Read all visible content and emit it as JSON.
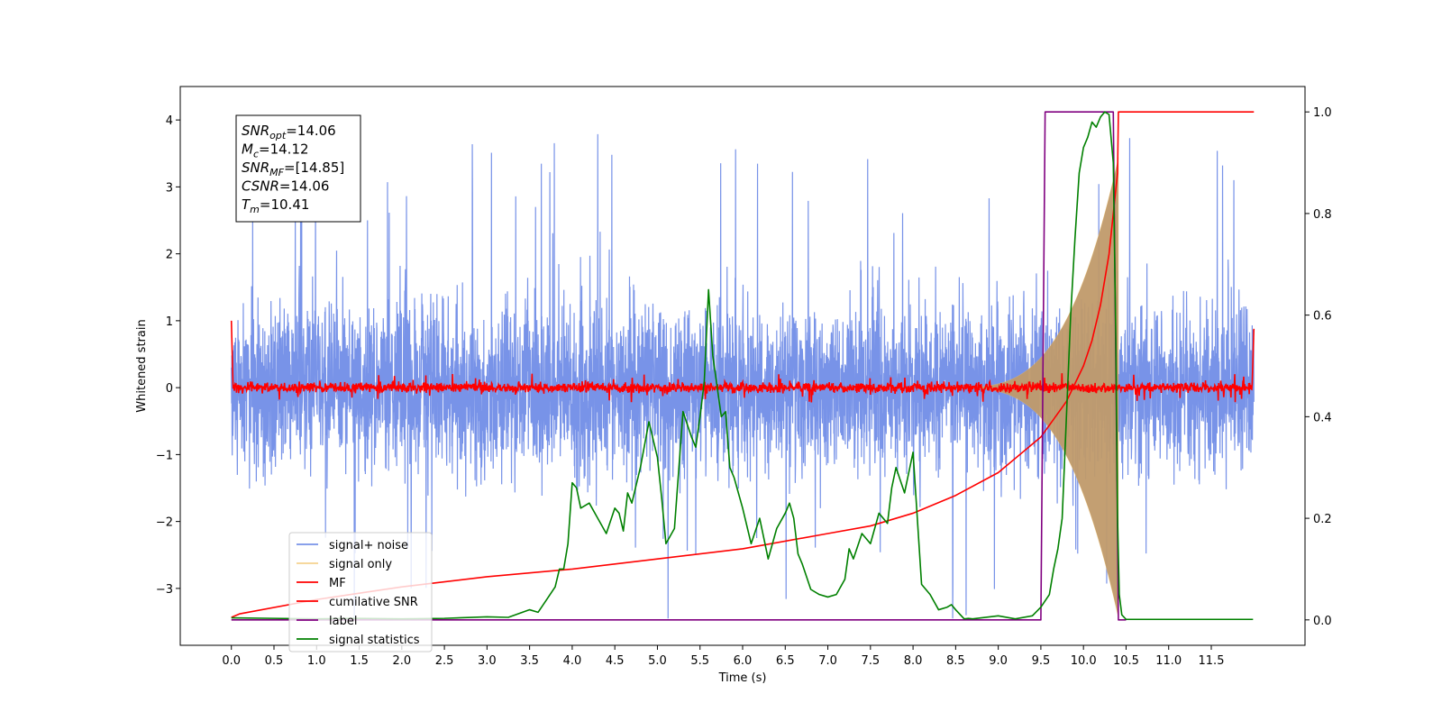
{
  "chart_data": {
    "type": "line",
    "title": "",
    "xlabel": "Time (s)",
    "ylabel": "Whitened strain",
    "y2label": "",
    "xlim": [
      -0.6,
      12.6
    ],
    "ylim": [
      -3.85,
      4.5
    ],
    "y2lim": [
      -0.05,
      1.05
    ],
    "xticks": [
      0.0,
      0.5,
      1.0,
      1.5,
      2.0,
      2.5,
      3.0,
      3.5,
      4.0,
      4.5,
      5.0,
      5.5,
      6.0,
      6.5,
      7.0,
      7.5,
      8.0,
      8.5,
      9.0,
      9.5,
      10.0,
      10.5,
      11.0,
      11.5
    ],
    "xtick_labels": [
      "0.0",
      "0.5",
      "1.0",
      "1.5",
      "2.0",
      "2.5",
      "3.0",
      "3.5",
      "4.0",
      "4.5",
      "5.0",
      "5.5",
      "6.0",
      "6.5",
      "7.0",
      "7.5",
      "8.0",
      "8.5",
      "9.0",
      "9.5",
      "10.0",
      "10.5",
      "11.0",
      "11.5"
    ],
    "yticks": [
      -3,
      -2,
      -1,
      0,
      1,
      2,
      3,
      4
    ],
    "ytick_labels": [
      "−3",
      "−2",
      "−1",
      "0",
      "1",
      "2",
      "3",
      "4"
    ],
    "y2ticks": [
      0.0,
      0.2,
      0.4,
      0.6,
      0.8,
      1.0
    ],
    "y2tick_labels": [
      "0.0",
      "0.2",
      "0.4",
      "0.6",
      "0.8",
      "1.0"
    ],
    "grid": false,
    "legend_placement": "lower-left",
    "info_box": {
      "lines": [
        {
          "base": "SNR",
          "sub": "opt",
          "value": "=14.06"
        },
        {
          "base": "M",
          "sub": "c",
          "value": "=14.12"
        },
        {
          "base": "SNR",
          "sub": "MF",
          "value": "=[14.85]"
        },
        {
          "base": "CSNR",
          "sub": "",
          "value": "=14.06"
        },
        {
          "base": "T",
          "sub": "m",
          "value": "=10.41"
        }
      ]
    },
    "series": [
      {
        "name": "signal+ noise",
        "axis": "left",
        "color": "#7893e8",
        "kind": "noise",
        "x_range": [
          0.0,
          12.0
        ],
        "typical_amplitude": 1.7,
        "spike_max": 4.15,
        "spike_min": -3.45
      },
      {
        "name": "signal only",
        "axis": "left",
        "color": "#f0c060",
        "fill_color": "#c09a6a",
        "kind": "chirp",
        "x_range": [
          8.5,
          10.41
        ],
        "peak_amplitude": 3.4
      },
      {
        "name": "MF",
        "axis": "left",
        "color": "#ff0000",
        "kind": "mf",
        "x_range": [
          0.0,
          12.0
        ],
        "start_value": 1.0,
        "end_value": 0.88,
        "noise_amplitude": 0.07
      },
      {
        "name": "cumilative SNR",
        "axis": "right",
        "color": "#ff0000",
        "x": [
          0.0,
          0.1,
          1.0,
          2.0,
          3.0,
          4.0,
          5.0,
          6.0,
          7.0,
          7.5,
          8.0,
          8.5,
          9.0,
          9.5,
          9.8,
          10.0,
          10.1,
          10.2,
          10.3,
          10.35,
          10.4,
          10.41,
          12.0
        ],
        "y": [
          0.005,
          0.012,
          0.04,
          0.065,
          0.085,
          0.1,
          0.12,
          0.14,
          0.17,
          0.185,
          0.21,
          0.245,
          0.29,
          0.36,
          0.43,
          0.5,
          0.55,
          0.62,
          0.72,
          0.8,
          0.88,
          1.0,
          1.0
        ]
      },
      {
        "name": "label",
        "axis": "right",
        "color": "#800080",
        "x": [
          0.0,
          9.5,
          9.55,
          10.35,
          10.41,
          10.5
        ],
        "y": [
          0.0,
          0.0,
          1.0,
          1.0,
          0.0,
          0.0
        ]
      },
      {
        "name": "signal statistics",
        "axis": "right",
        "color": "#008000",
        "x": [
          0.0,
          0.5,
          1.0,
          1.5,
          2.0,
          2.5,
          3.0,
          3.25,
          3.5,
          3.6,
          3.7,
          3.8,
          3.85,
          3.9,
          3.95,
          4.0,
          4.05,
          4.1,
          4.2,
          4.3,
          4.4,
          4.5,
          4.55,
          4.6,
          4.65,
          4.7,
          4.8,
          4.9,
          5.0,
          5.05,
          5.1,
          5.2,
          5.3,
          5.4,
          5.45,
          5.5,
          5.55,
          5.6,
          5.65,
          5.7,
          5.75,
          5.8,
          5.85,
          5.9,
          6.0,
          6.1,
          6.2,
          6.3,
          6.4,
          6.5,
          6.55,
          6.6,
          6.65,
          6.7,
          6.8,
          6.9,
          7.0,
          7.1,
          7.2,
          7.25,
          7.3,
          7.4,
          7.5,
          7.6,
          7.7,
          7.75,
          7.8,
          7.9,
          7.95,
          8.0,
          8.05,
          8.1,
          8.2,
          8.3,
          8.4,
          8.45,
          8.5,
          8.6,
          8.65,
          8.7,
          8.8,
          9.0,
          9.2,
          9.4,
          9.5,
          9.6,
          9.65,
          9.7,
          9.75,
          9.8,
          9.85,
          9.9,
          9.95,
          10.0,
          10.05,
          10.1,
          10.15,
          10.2,
          10.25,
          10.3,
          10.35,
          10.38,
          10.4,
          10.42,
          10.45,
          10.5,
          11.0,
          11.5,
          11.99
        ],
        "y": [
          0.004,
          0.003,
          0.002,
          0.003,
          0.002,
          0.003,
          0.006,
          0.005,
          0.02,
          0.015,
          0.04,
          0.065,
          0.1,
          0.1,
          0.15,
          0.27,
          0.26,
          0.22,
          0.23,
          0.2,
          0.17,
          0.22,
          0.21,
          0.175,
          0.25,
          0.23,
          0.3,
          0.39,
          0.32,
          0.24,
          0.15,
          0.18,
          0.41,
          0.36,
          0.34,
          0.4,
          0.47,
          0.65,
          0.52,
          0.46,
          0.4,
          0.41,
          0.3,
          0.28,
          0.22,
          0.15,
          0.2,
          0.12,
          0.18,
          0.21,
          0.23,
          0.2,
          0.13,
          0.11,
          0.06,
          0.05,
          0.045,
          0.05,
          0.08,
          0.14,
          0.12,
          0.17,
          0.15,
          0.21,
          0.19,
          0.26,
          0.3,
          0.25,
          0.29,
          0.33,
          0.2,
          0.07,
          0.05,
          0.02,
          0.025,
          0.03,
          0.02,
          0.002,
          0.003,
          0.002,
          0.004,
          0.008,
          0.002,
          0.008,
          0.025,
          0.05,
          0.1,
          0.14,
          0.2,
          0.4,
          0.6,
          0.75,
          0.88,
          0.93,
          0.95,
          0.98,
          0.97,
          0.99,
          1.0,
          0.995,
          0.9,
          0.55,
          0.2,
          0.05,
          0.01,
          0.001,
          0.001,
          0.001,
          0.001
        ]
      }
    ],
    "legend": [
      {
        "label": "signal+ noise",
        "color": "#7893e8"
      },
      {
        "label": "signal only",
        "color": "#f0c060"
      },
      {
        "label": "MF",
        "color": "#ff0000"
      },
      {
        "label": "cumilative SNR",
        "color": "#ff0000"
      },
      {
        "label": "label",
        "color": "#800080"
      },
      {
        "label": "signal statistics",
        "color": "#008000"
      }
    ]
  }
}
